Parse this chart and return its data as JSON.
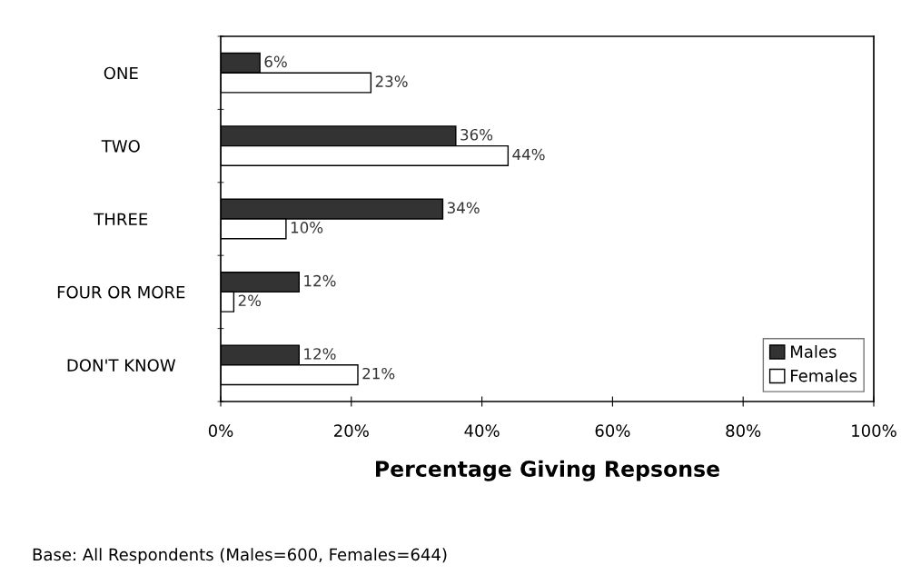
{
  "chart_data": {
    "type": "bar",
    "orientation": "horizontal",
    "categories": [
      "ONE",
      "TWO",
      "THREE",
      "FOUR OR MORE",
      "DON'T KNOW"
    ],
    "series": [
      {
        "name": "Males",
        "color": "#333333",
        "values": [
          6,
          36,
          34,
          12,
          12
        ],
        "value_labels": [
          "6%",
          "36%",
          "34%",
          "12%",
          "12%"
        ]
      },
      {
        "name": "Females",
        "color": "#ffffff",
        "values": [
          23,
          44,
          10,
          2,
          21
        ],
        "value_labels": [
          "23%",
          "44%",
          "10%",
          "2%",
          "21%"
        ]
      }
    ],
    "xlim": [
      0,
      100
    ],
    "xticks": [
      {
        "value": 0,
        "label": "0%"
      },
      {
        "value": 20,
        "label": "20%"
      },
      {
        "value": 40,
        "label": "40%"
      },
      {
        "value": 60,
        "label": "60%"
      },
      {
        "value": 80,
        "label": "80%"
      },
      {
        "value": 100,
        "label": "100%"
      }
    ],
    "xlabel": "Percentage Giving Repsonse",
    "annotations": [
      "Base: All Respondents (Males=600, Females=644)"
    ],
    "legend": "bottom right",
    "grid": false
  }
}
